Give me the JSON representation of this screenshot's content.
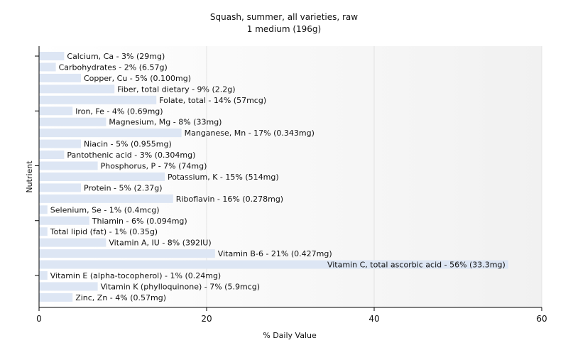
{
  "chart_data": {
    "type": "bar",
    "orientation": "horizontal",
    "title": "Squash, summer, all varieties, raw",
    "subtitle": "1 medium (196g)",
    "xlabel": "% Daily Value",
    "ylabel": "Nutrient",
    "xlim": [
      0,
      60
    ],
    "xticks": [
      0,
      20,
      40,
      60
    ],
    "grid": true,
    "bar_color": "#dde6f4",
    "categories": [
      "Calcium, Ca",
      "Carbohydrates",
      "Copper, Cu",
      "Fiber, total dietary",
      "Folate, total",
      "Iron, Fe",
      "Magnesium, Mg",
      "Manganese, Mn",
      "Niacin",
      "Pantothenic acid",
      "Phosphorus, P",
      "Potassium, K",
      "Protein",
      "Riboflavin",
      "Selenium, Se",
      "Thiamin",
      "Total lipid (fat)",
      "Vitamin A, IU",
      "Vitamin B-6",
      "Vitamin C, total ascorbic acid",
      "Vitamin E (alpha-tocopherol)",
      "Vitamin K (phylloquinone)",
      "Zinc, Zn"
    ],
    "values": [
      3,
      2,
      5,
      9,
      14,
      4,
      8,
      17,
      5,
      3,
      7,
      15,
      5,
      16,
      1,
      6,
      1,
      8,
      21,
      56,
      1,
      7,
      4
    ],
    "labels": [
      "Calcium, Ca - 3% (29mg)",
      "Carbohydrates - 2% (6.57g)",
      "Copper, Cu - 5% (0.100mg)",
      "Fiber, total dietary - 9% (2.2g)",
      "Folate, total - 14% (57mcg)",
      "Iron, Fe - 4% (0.69mg)",
      "Magnesium, Mg - 8% (33mg)",
      "Manganese, Mn - 17% (0.343mg)",
      "Niacin - 5% (0.955mg)",
      "Pantothenic acid - 3% (0.304mg)",
      "Phosphorus, P - 7% (74mg)",
      "Potassium, K - 15% (514mg)",
      "Protein - 5% (2.37g)",
      "Riboflavin - 16% (0.278mg)",
      "Selenium, Se - 1% (0.4mcg)",
      "Thiamin - 6% (0.094mg)",
      "Total lipid (fat) - 1% (0.35g)",
      "Vitamin A, IU - 8% (392IU)",
      "Vitamin B-6 - 21% (0.427mg)",
      "Vitamin C, total ascorbic acid - 56% (33.3mg)",
      "Vitamin E (alpha-tocopherol) - 1% (0.24mg)",
      "Vitamin K (phylloquinone) - 7% (5.9mcg)",
      "Zinc, Zn - 4% (0.57mg)"
    ]
  }
}
